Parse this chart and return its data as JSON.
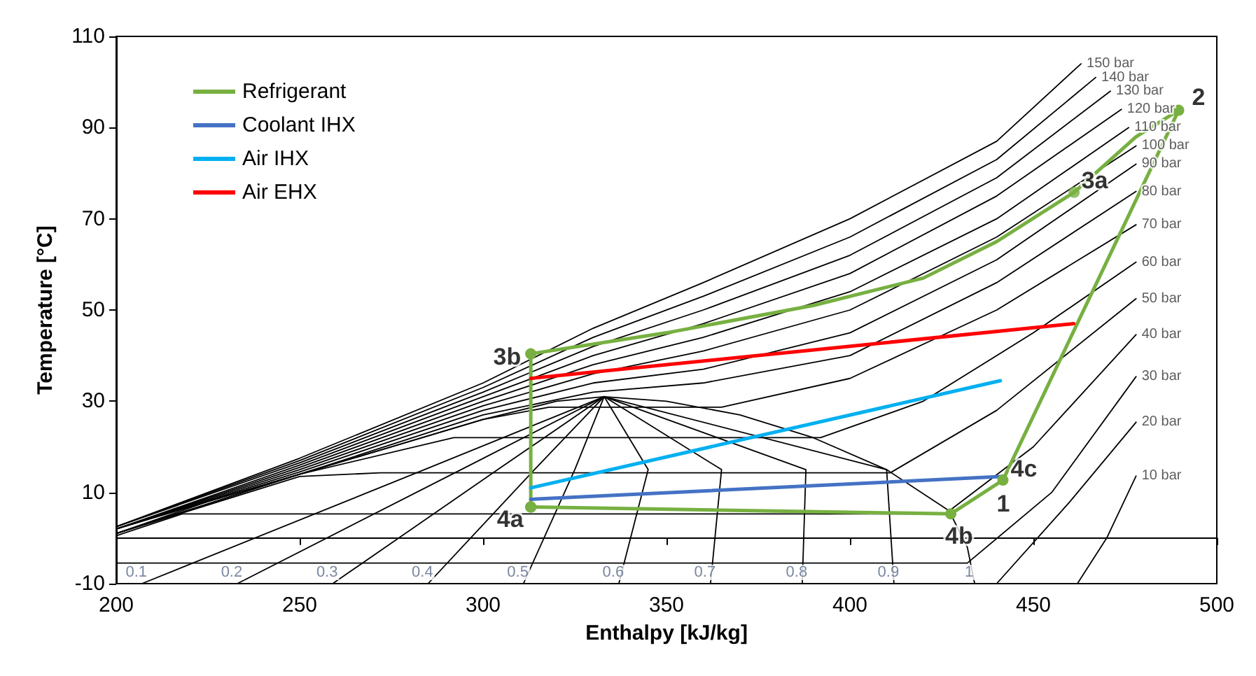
{
  "chart_data": {
    "type": "line",
    "xlabel": "Enthalpy [kJ/kg]",
    "ylabel": "Temperature [°C]",
    "xlim": [
      200,
      500
    ],
    "xticks": [
      200,
      250,
      300,
      350,
      400,
      450,
      500
    ],
    "ylim": [
      -10,
      110
    ],
    "yticks": [
      -10,
      10,
      30,
      50,
      70,
      90,
      110
    ],
    "grid": false,
    "legend": "top left",
    "marker": "none",
    "line_style": "solid",
    "annotations": [
      {
        "text": "3b",
        "x": 313,
        "y": 40.4
      },
      {
        "text": "3a",
        "x": 461.1,
        "y": 75.8
      },
      {
        "text": "2",
        "x": 489.6,
        "y": 93.8
      },
      {
        "text": "4c",
        "x": 441.7,
        "y": 12.7
      },
      {
        "text": "1",
        "x": 441.7,
        "y": 12.7
      },
      {
        "text": "4b",
        "x": 427.5,
        "y": 5.3
      },
      {
        "text": "4a",
        "x": 313,
        "y": 6.8
      },
      {
        "text": "0.1",
        "x": 207,
        "y": -10
      },
      {
        "text": "0.2",
        "x": 233,
        "y": -10
      },
      {
        "text": "0.3",
        "x": 259,
        "y": -10
      },
      {
        "text": "0.4",
        "x": 285,
        "y": -10
      },
      {
        "text": "0.5",
        "x": 311,
        "y": -10
      },
      {
        "text": "0.6",
        "x": 337,
        "y": -10
      },
      {
        "text": "0.7",
        "x": 362,
        "y": -10
      },
      {
        "text": "0.8",
        "x": 387,
        "y": -10
      },
      {
        "text": "0.9",
        "x": 412,
        "y": -10
      },
      {
        "text": "1",
        "x": 434,
        "y": -10
      },
      {
        "text": "10 bar",
        "x": 478,
        "y": 13.6
      },
      {
        "text": "20 bar",
        "x": 478,
        "y": 25.4
      },
      {
        "text": "30 bar",
        "x": 478,
        "y": 35.4
      },
      {
        "text": "40 bar",
        "x": 478,
        "y": 44.6
      },
      {
        "text": "50 bar",
        "x": 478,
        "y": 52.5
      },
      {
        "text": "60 bar",
        "x": 478,
        "y": 60.5
      },
      {
        "text": "70 bar",
        "x": 478,
        "y": 68.7
      },
      {
        "text": "80 bar",
        "x": 478,
        "y": 76
      },
      {
        "text": "90 bar",
        "x": 478,
        "y": 82
      },
      {
        "text": "100 bar",
        "x": 478,
        "y": 86
      },
      {
        "text": "110 bar",
        "x": 476,
        "y": 90
      },
      {
        "text": "120 bar",
        "x": 474,
        "y": 94
      },
      {
        "text": "130 bar",
        "x": 471,
        "y": 98
      },
      {
        "text": "140 bar",
        "x": 467,
        "y": 101
      },
      {
        "text": "150 bar",
        "x": 463,
        "y": 104
      }
    ],
    "series": [
      {
        "color": "#000000",
        "x": [
          200,
          225,
          250,
          275,
          300,
          320,
          333,
          350,
          370,
          390,
          410,
          427,
          432,
          434
        ],
        "values": [
          1,
          8,
          14,
          20,
          26,
          30,
          31,
          30,
          27,
          22,
          15,
          6,
          -2,
          -10
        ]
      },
      {
        "color": "#000000",
        "x": [
          333,
          284,
          207
        ],
        "values": [
          31,
          15,
          -10
        ]
      },
      {
        "color": "#000000",
        "x": [
          333,
          294,
          233
        ],
        "values": [
          31,
          15,
          -10
        ]
      },
      {
        "color": "#000000",
        "x": [
          333,
          304,
          259
        ],
        "values": [
          31,
          15,
          -10
        ]
      },
      {
        "color": "#000000",
        "x": [
          333,
          314,
          285
        ],
        "values": [
          31,
          15,
          -10
        ]
      },
      {
        "color": "#000000",
        "x": [
          333,
          325,
          311
        ],
        "values": [
          31,
          15,
          -10
        ]
      },
      {
        "color": "#000000",
        "x": [
          333,
          345,
          337
        ],
        "values": [
          31,
          15,
          -10
        ]
      },
      {
        "color": "#000000",
        "x": [
          333,
          365,
          362
        ],
        "values": [
          31,
          15,
          -10
        ]
      },
      {
        "color": "#000000",
        "x": [
          333,
          388,
          387
        ],
        "values": [
          31,
          15,
          -10
        ]
      },
      {
        "color": "#000000",
        "x": [
          333,
          410,
          412
        ],
        "values": [
          31,
          15,
          -10
        ]
      },
      {
        "color": "#000000",
        "x": [
          462,
          470,
          478
        ],
        "values": [
          -10,
          0,
          13.6
        ]
      },
      {
        "color": "#000000",
        "x": [
          440,
          460,
          478
        ],
        "values": [
          -10,
          8,
          25.4
        ]
      },
      {
        "color": "#000000",
        "x": [
          200,
          432,
          455,
          478
        ],
        "values": [
          -5.5,
          -5.5,
          10,
          35.4
        ]
      },
      {
        "color": "#000000",
        "x": [
          200,
          218,
          426,
          450,
          478
        ],
        "values": [
          0.5,
          5.3,
          5.3,
          20,
          44.6
        ]
      },
      {
        "color": "#000000",
        "x": [
          200,
          250,
          272,
          411,
          440,
          478
        ],
        "values": [
          1,
          13.5,
          14.3,
          14.3,
          28,
          52.5
        ]
      },
      {
        "color": "#000000",
        "x": [
          200,
          250,
          292,
          392,
          420,
          450,
          478
        ],
        "values": [
          1,
          14,
          22,
          22,
          30,
          45,
          60.5
        ]
      },
      {
        "color": "#000000",
        "x": [
          200,
          250,
          300,
          318,
          365,
          400,
          440,
          478
        ],
        "values": [
          1,
          14,
          26,
          28.7,
          28.7,
          35,
          50,
          68.7
        ]
      },
      {
        "color": "#000000",
        "x": [
          200,
          250,
          300,
          330,
          360,
          400,
          440,
          478
        ],
        "values": [
          2,
          14,
          27,
          32,
          34,
          40,
          56,
          76
        ]
      },
      {
        "color": "#000000",
        "x": [
          200,
          250,
          300,
          330,
          360,
          400,
          440,
          478
        ],
        "values": [
          2,
          14.5,
          28,
          34,
          37,
          45,
          61,
          82
        ]
      },
      {
        "color": "#000000",
        "x": [
          200,
          250,
          300,
          330,
          360,
          400,
          440,
          478
        ],
        "values": [
          2,
          15,
          29,
          36,
          41,
          50,
          66,
          86
        ]
      },
      {
        "color": "#000000",
        "x": [
          200,
          250,
          300,
          330,
          360,
          400,
          440,
          476
        ],
        "values": [
          2,
          15.5,
          30,
          38,
          44,
          54,
          70,
          90
        ]
      },
      {
        "color": "#000000",
        "x": [
          200,
          250,
          300,
          330,
          360,
          400,
          440,
          474
        ],
        "values": [
          2,
          16,
          31,
          40,
          47,
          58,
          75,
          94
        ]
      },
      {
        "color": "#000000",
        "x": [
          200,
          250,
          300,
          330,
          360,
          400,
          440,
          471
        ],
        "values": [
          2.5,
          16.5,
          32,
          42,
          50,
          62,
          79,
          98
        ]
      },
      {
        "color": "#000000",
        "x": [
          200,
          250,
          300,
          330,
          360,
          400,
          440,
          467
        ],
        "values": [
          2.5,
          17,
          33,
          44,
          53,
          66,
          83,
          101
        ]
      },
      {
        "color": "#000000",
        "x": [
          200,
          250,
          300,
          330,
          360,
          400,
          440,
          463
        ],
        "values": [
          2.5,
          17.5,
          34,
          46,
          56,
          70,
          87,
          104
        ]
      },
      {
        "name": "Refrigerant",
        "color": "#77b041",
        "marker": "circle",
        "x": [
          313,
          427.5,
          441.7,
          489.6
        ],
        "values": [
          6.8,
          5.3,
          12.7,
          93.8
        ]
      },
      {
        "color": "#77b041",
        "x": [
          313,
          350,
          390,
          420,
          440,
          461.1,
          478,
          489.6
        ],
        "values": [
          40.4,
          45,
          51,
          57,
          65,
          75.8,
          88,
          93.8
        ]
      },
      {
        "type": "scatter",
        "color": "#77b041",
        "marker": "circle",
        "x": [
          461.1
        ],
        "values": [
          75.8
        ]
      },
      {
        "color": "#77b041",
        "marker": "circle",
        "x": [
          313,
          313
        ],
        "values": [
          40.4,
          6.8
        ]
      },
      {
        "name": "Coolant IHX",
        "color": "#4472c4",
        "x": [
          313,
          442
        ],
        "values": [
          8.5,
          13.5
        ]
      },
      {
        "name": "Air IHX",
        "color": "#00b0f0",
        "x": [
          313,
          441
        ],
        "values": [
          11,
          34.5
        ]
      },
      {
        "name": "Air EHX",
        "color": "#ff0000",
        "x": [
          313,
          461
        ],
        "values": [
          35,
          47
        ]
      }
    ]
  }
}
